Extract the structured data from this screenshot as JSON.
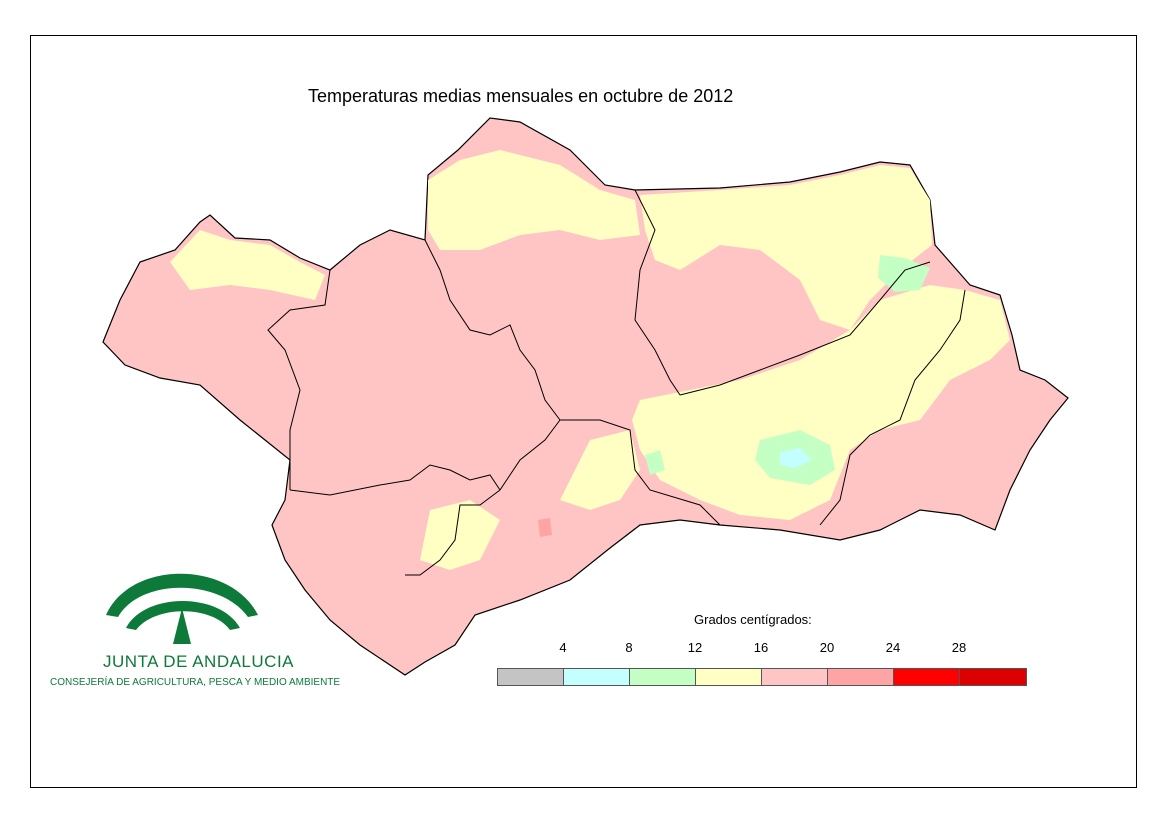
{
  "map": {
    "title": "Temperaturas medias mensuales en octubre de 2012",
    "colors": {
      "pink": "#ffc4c4",
      "yellow": "#ffffc4",
      "green": "#c4ffc4",
      "cyan": "#c4ffff",
      "salmon": "#ffa4a4",
      "border": "#000000"
    }
  },
  "legend": {
    "title": "Grados centígrados:",
    "ticks": [
      "4",
      "8",
      "12",
      "16",
      "20",
      "24",
      "28"
    ],
    "swatches": [
      "#c4c4c4",
      "#c4ffff",
      "#c4ffc4",
      "#ffffc4",
      "#ffc4c4",
      "#ffa4a4",
      "#ff0000",
      "#dd0000"
    ]
  },
  "logo": {
    "name": "JUNTA DE ANDALUCIA",
    "subtitle": "CONSEJERÍA DE AGRICULTURA, PESCA Y MEDIO AMBIENTE",
    "color": "#0d7a3a"
  }
}
